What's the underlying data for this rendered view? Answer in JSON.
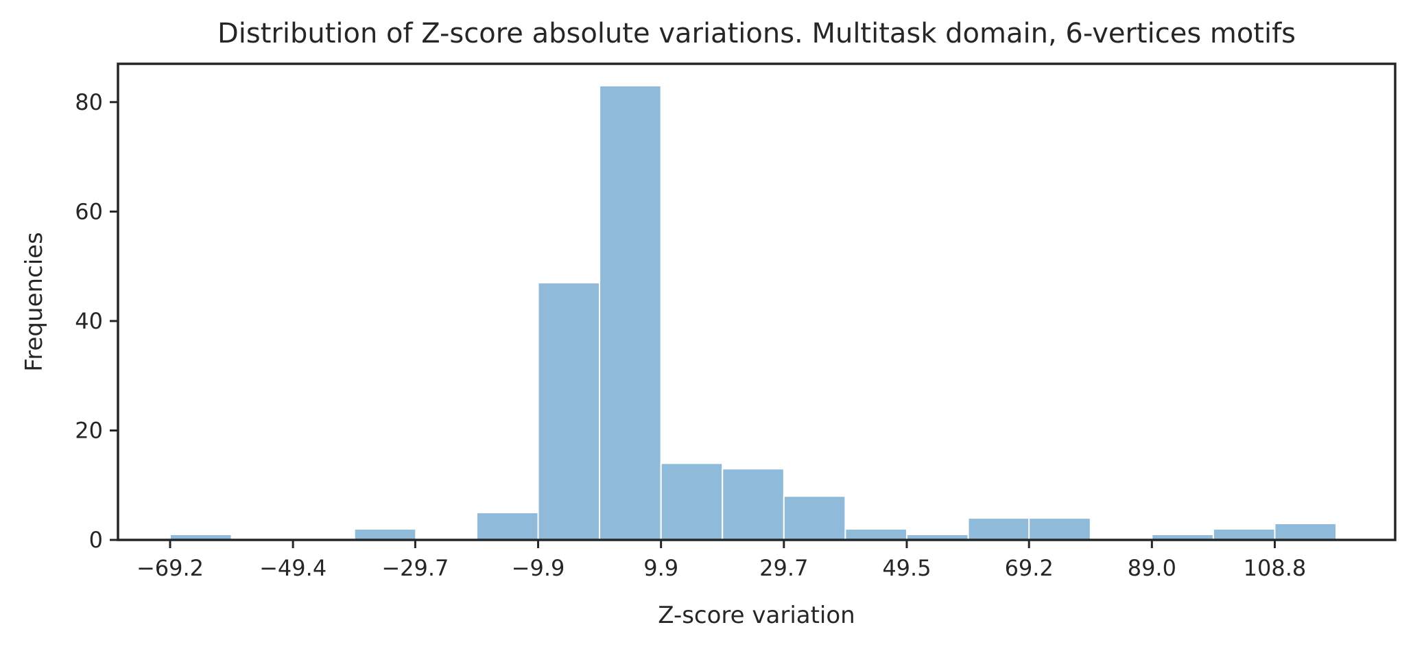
{
  "chart_data": {
    "type": "bar",
    "title": "Distribution of Z-score absolute variations. Multitask domain, 6-vertices motifs",
    "xlabel": "Z-score variation",
    "ylabel": "Frequencies",
    "bin_width": 9.9,
    "bins": [
      {
        "start": -69.2,
        "value": 1
      },
      {
        "start": -59.3,
        "value": 0
      },
      {
        "start": -49.4,
        "value": 0
      },
      {
        "start": -39.5,
        "value": 2
      },
      {
        "start": -29.7,
        "value": 0
      },
      {
        "start": -19.8,
        "value": 5
      },
      {
        "start": -9.9,
        "value": 47
      },
      {
        "start": 0.0,
        "value": 83
      },
      {
        "start": 9.9,
        "value": 14
      },
      {
        "start": 19.8,
        "value": 13
      },
      {
        "start": 29.7,
        "value": 8
      },
      {
        "start": 39.6,
        "value": 2
      },
      {
        "start": 49.5,
        "value": 1
      },
      {
        "start": 59.4,
        "value": 4
      },
      {
        "start": 69.2,
        "value": 4
      },
      {
        "start": 79.1,
        "value": 0
      },
      {
        "start": 89.0,
        "value": 1
      },
      {
        "start": 98.9,
        "value": 2
      },
      {
        "start": 108.8,
        "value": 3
      }
    ],
    "xticks": [
      -69.2,
      -49.4,
      -29.7,
      -9.9,
      9.9,
      29.7,
      49.5,
      69.2,
      89.0,
      108.8
    ],
    "xtick_labels": [
      "−69.2",
      "−49.4",
      "−29.7",
      "−9.9",
      "9.9",
      "29.7",
      "49.5",
      "69.2",
      "89.0",
      "108.8"
    ],
    "yticks": [
      0,
      20,
      40,
      60,
      80
    ],
    "xlim": [
      -77.6,
      128.2
    ],
    "ylim": [
      0,
      87
    ],
    "grid": false,
    "legend": "none",
    "bar_color": "#8fbad9",
    "text_color": "#262626"
  }
}
